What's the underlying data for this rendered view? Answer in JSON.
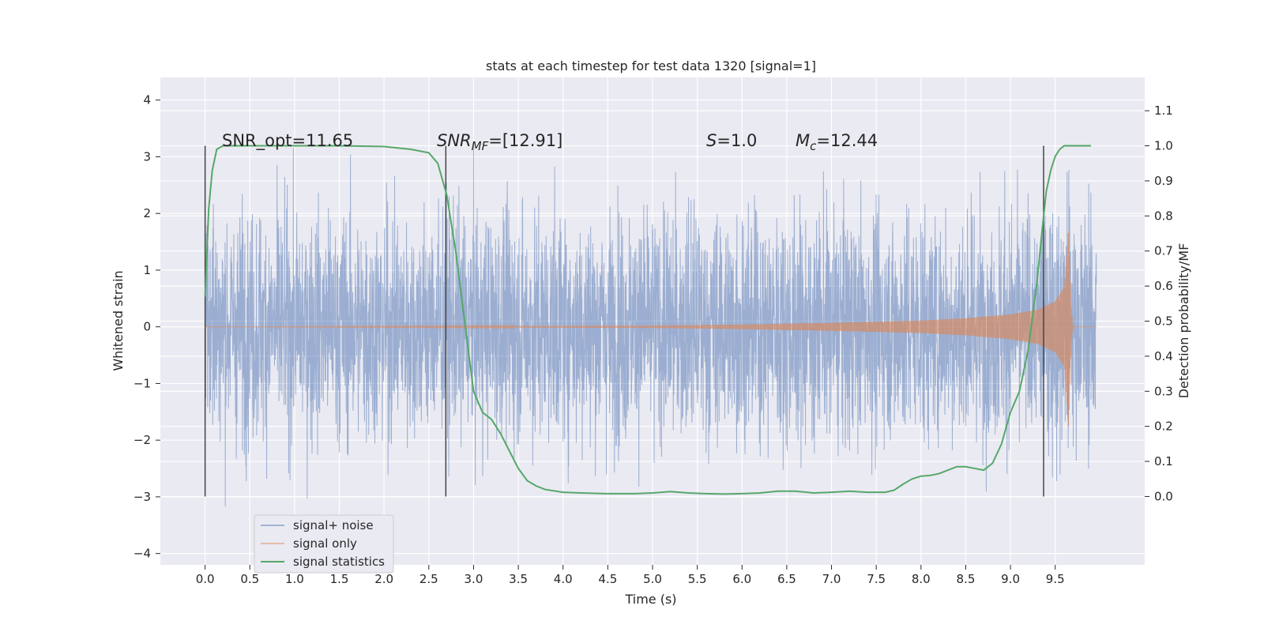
{
  "chart_data": {
    "type": "line",
    "title": "stats at each timestep for test data 1320 [signal=1]",
    "xlabel": "Time (s)",
    "ylabel": "Whitened strain",
    "y2label": "Detection probability/MF",
    "xlim": [
      -0.5,
      10.5
    ],
    "ylim": [
      -4.2,
      4.4
    ],
    "y2lim": [
      -0.195,
      1.195
    ],
    "x_ticks": [
      "0.0",
      "0.5",
      "1.0",
      "1.5",
      "2.0",
      "2.5",
      "3.0",
      "3.5",
      "4.0",
      "4.5",
      "5.0",
      "5.5",
      "6.0",
      "6.5",
      "7.0",
      "7.5",
      "8.0",
      "8.5",
      "9.0",
      "9.5"
    ],
    "y_ticks": [
      "−4",
      "−3",
      "−2",
      "−1",
      "0",
      "1",
      "2",
      "3",
      "4"
    ],
    "y2_ticks": [
      "0.0",
      "0.1",
      "0.2",
      "0.3",
      "0.4",
      "0.5",
      "0.6",
      "0.7",
      "0.8",
      "0.9",
      "1.0",
      "1.1"
    ],
    "grid": true,
    "legend_position": "lower-left",
    "colors": {
      "signal_noise": "#4c72b0",
      "signal_only": "#dd8452",
      "signal_statistics": "#55a868",
      "vlines": "#444444",
      "plot_bg": "#eaeaf2"
    },
    "series": [
      {
        "name": "signal+ noise",
        "axis": "left",
        "description_range": [
          -3.9,
          4.1
        ],
        "x_range": [
          0.0,
          9.96
        ],
        "envelope_values": [
          1.3,
          -1.8
        ]
      },
      {
        "name": "signal only",
        "axis": "left",
        "x": [
          0.0,
          5.0,
          6.0,
          7.0,
          8.0,
          8.5,
          9.0,
          9.3,
          9.5,
          9.6,
          9.65,
          9.68,
          9.7,
          9.96
        ],
        "amplitude": [
          0.0,
          0.02,
          0.04,
          0.07,
          0.11,
          0.15,
          0.22,
          0.3,
          0.45,
          0.7,
          1.8,
          0.3,
          0.0,
          0.0
        ]
      },
      {
        "name": "signal statistics",
        "axis": "right",
        "x": [
          0.0,
          0.04,
          0.08,
          0.13,
          0.2,
          0.3,
          0.6,
          1.0,
          1.5,
          2.0,
          2.3,
          2.5,
          2.6,
          2.7,
          2.8,
          2.9,
          3.0,
          3.1,
          3.2,
          3.3,
          3.4,
          3.5,
          3.6,
          3.7,
          3.8,
          4.0,
          4.2,
          4.5,
          4.8,
          5.0,
          5.2,
          5.4,
          5.6,
          5.8,
          6.0,
          6.2,
          6.4,
          6.6,
          6.8,
          7.0,
          7.2,
          7.4,
          7.6,
          7.7,
          7.8,
          7.9,
          8.0,
          8.1,
          8.2,
          8.3,
          8.4,
          8.5,
          8.6,
          8.7,
          8.8,
          8.9,
          9.0,
          9.1,
          9.2,
          9.3,
          9.35,
          9.4,
          9.45,
          9.5,
          9.55,
          9.6,
          9.7,
          9.8,
          9.9
        ],
        "values": [
          0.57,
          0.82,
          0.93,
          0.99,
          1.0,
          1.0,
          1.0,
          1.0,
          1.0,
          0.998,
          0.99,
          0.98,
          0.95,
          0.86,
          0.7,
          0.5,
          0.3,
          0.24,
          0.22,
          0.18,
          0.13,
          0.08,
          0.045,
          0.03,
          0.02,
          0.012,
          0.01,
          0.008,
          0.008,
          0.01,
          0.014,
          0.01,
          0.008,
          0.007,
          0.008,
          0.01,
          0.015,
          0.015,
          0.01,
          0.012,
          0.015,
          0.012,
          0.012,
          0.018,
          0.035,
          0.05,
          0.058,
          0.06,
          0.065,
          0.075,
          0.085,
          0.085,
          0.08,
          0.075,
          0.095,
          0.15,
          0.24,
          0.3,
          0.42,
          0.62,
          0.75,
          0.87,
          0.93,
          0.97,
          0.99,
          1.0,
          1.0,
          1.0,
          1.0
        ]
      }
    ],
    "vlines_x": [
      0.0,
      2.69,
      9.37
    ],
    "annotations": {
      "snr_opt": "SNR_opt=11.65",
      "snr_mf_sym": "SNR",
      "snr_mf_sub": "MF",
      "snr_mf_val": "=[12.91]",
      "s_sym": "S",
      "s_val": "=1.0",
      "mc_sym": "M",
      "mc_sub": "c",
      "mc_val": "=12.44"
    }
  }
}
